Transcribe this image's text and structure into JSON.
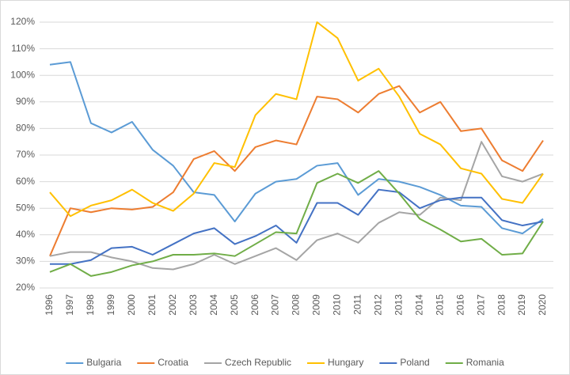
{
  "chart_data": {
    "type": "line",
    "categories": [
      "1996",
      "1997",
      "1998",
      "1999",
      "2000",
      "2001",
      "2002",
      "2003",
      "2004",
      "2005",
      "2006",
      "2007",
      "2008",
      "2009",
      "2010",
      "2011",
      "2012",
      "2013",
      "2014",
      "2015",
      "2016",
      "2017",
      "2018",
      "2019",
      "2020"
    ],
    "series": [
      {
        "name": "Bulgaria",
        "color": "#5b9bd5",
        "values": [
          104,
          105,
          82,
          78.5,
          82.5,
          72,
          66,
          56,
          55,
          45,
          55.5,
          60,
          61,
          66,
          67,
          55,
          61,
          60,
          58,
          55,
          51,
          50.5,
          42.5,
          40.5,
          46
        ]
      },
      {
        "name": "Croatia",
        "color": "#ed7d31",
        "values": [
          32,
          50,
          48.5,
          50,
          49.5,
          50.5,
          56,
          68.5,
          71.5,
          64,
          73,
          75.5,
          74,
          92,
          91,
          86,
          93,
          96,
          86,
          90,
          79,
          80,
          68,
          64,
          75.5
        ]
      },
      {
        "name": "Czech Republic",
        "color": "#a5a5a5",
        "values": [
          32,
          33.5,
          33.5,
          31.5,
          30,
          27.5,
          27,
          29,
          32.5,
          29,
          32,
          35,
          30.5,
          38,
          40.5,
          37,
          44.5,
          48.5,
          47.5,
          54,
          53,
          75,
          62,
          60,
          63
        ]
      },
      {
        "name": "Hungary",
        "color": "#ffc000",
        "values": [
          56,
          47,
          51,
          53,
          57,
          52,
          49,
          55.5,
          67,
          65.5,
          85,
          93,
          91,
          120,
          114,
          98,
          102.5,
          92,
          78,
          74,
          65,
          63,
          53.5,
          52,
          63
        ]
      },
      {
        "name": "Poland",
        "color": "#4472c4",
        "values": [
          29,
          29,
          30.5,
          35,
          35.5,
          32.5,
          36.5,
          40.5,
          42.5,
          36.5,
          39.5,
          43.5,
          37,
          52,
          52,
          47.5,
          57,
          56,
          50,
          53,
          54,
          54,
          45.5,
          43.5,
          45
        ]
      },
      {
        "name": "Romania",
        "color": "#70ad47",
        "values": [
          26,
          29,
          24.5,
          26,
          28.5,
          30,
          32.5,
          32.5,
          33,
          32,
          36.5,
          41,
          40.5,
          59.5,
          63,
          59.5,
          64,
          55.5,
          46,
          42,
          37.5,
          38.5,
          32.5,
          33,
          45
        ]
      }
    ],
    "ylim": [
      20,
      120
    ],
    "yticks": [
      {
        "value": 20,
        "label": "20%"
      },
      {
        "value": 30,
        "label": "30%"
      },
      {
        "value": 40,
        "label": "40%"
      },
      {
        "value": 50,
        "label": "50%"
      },
      {
        "value": 60,
        "label": "60%"
      },
      {
        "value": 70,
        "label": "70%"
      },
      {
        "value": 80,
        "label": "80%"
      },
      {
        "value": 90,
        "label": "90%"
      },
      {
        "value": 100,
        "label": "100%"
      },
      {
        "value": 110,
        "label": "110%"
      },
      {
        "value": 120,
        "label": "120%"
      }
    ],
    "grid": true,
    "legend": "bottom"
  }
}
